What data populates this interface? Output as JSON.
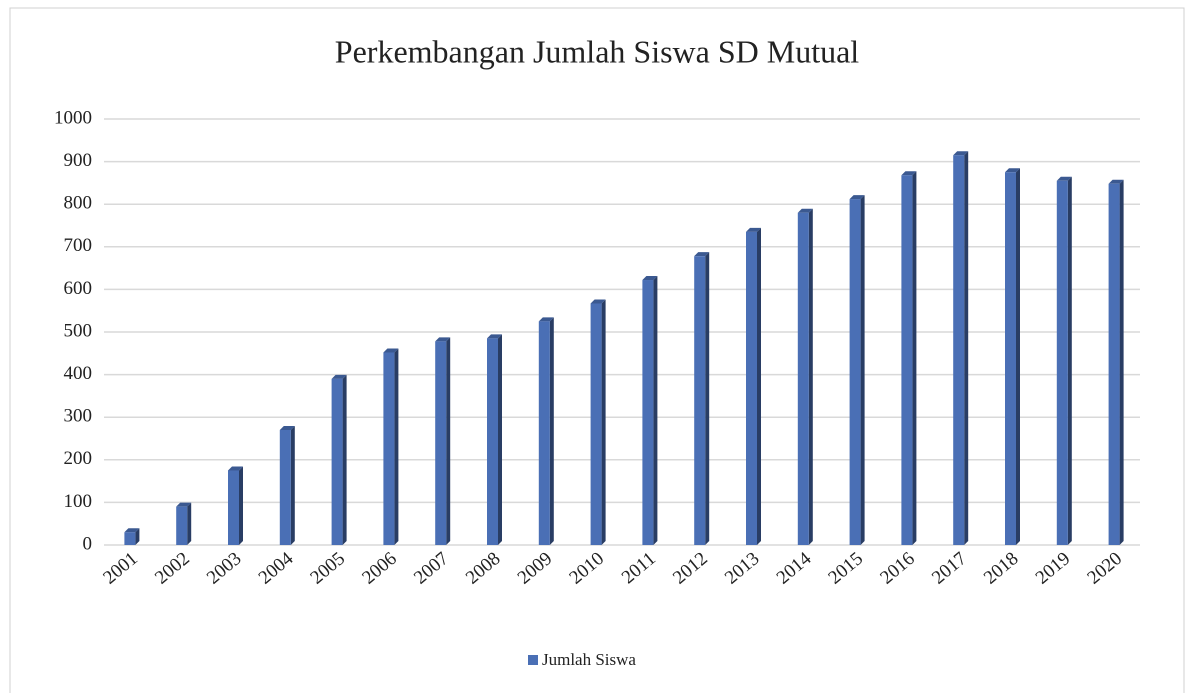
{
  "chart_data": {
    "type": "bar",
    "title": "Perkembangan Jumlah Siswa SD Mutual",
    "categories": [
      "2001",
      "2002",
      "2003",
      "2004",
      "2005",
      "2006",
      "2007",
      "2008",
      "2009",
      "2010",
      "2011",
      "2012",
      "2013",
      "2014",
      "2015",
      "2016",
      "2017",
      "2018",
      "2019",
      "2020"
    ],
    "series": [
      {
        "name": "Jumlah Siswa",
        "color": "#4a6fb5",
        "values": [
          30,
          90,
          175,
          270,
          390,
          452,
          478,
          485,
          525,
          567,
          622,
          678,
          735,
          780,
          812,
          868,
          915,
          875,
          855,
          848
        ]
      }
    ],
    "ylim": [
      0,
      1000
    ],
    "yticks": [
      0,
      100,
      200,
      300,
      400,
      500,
      600,
      700,
      800,
      900,
      1000
    ],
    "grid": true,
    "legend": "bottom"
  }
}
